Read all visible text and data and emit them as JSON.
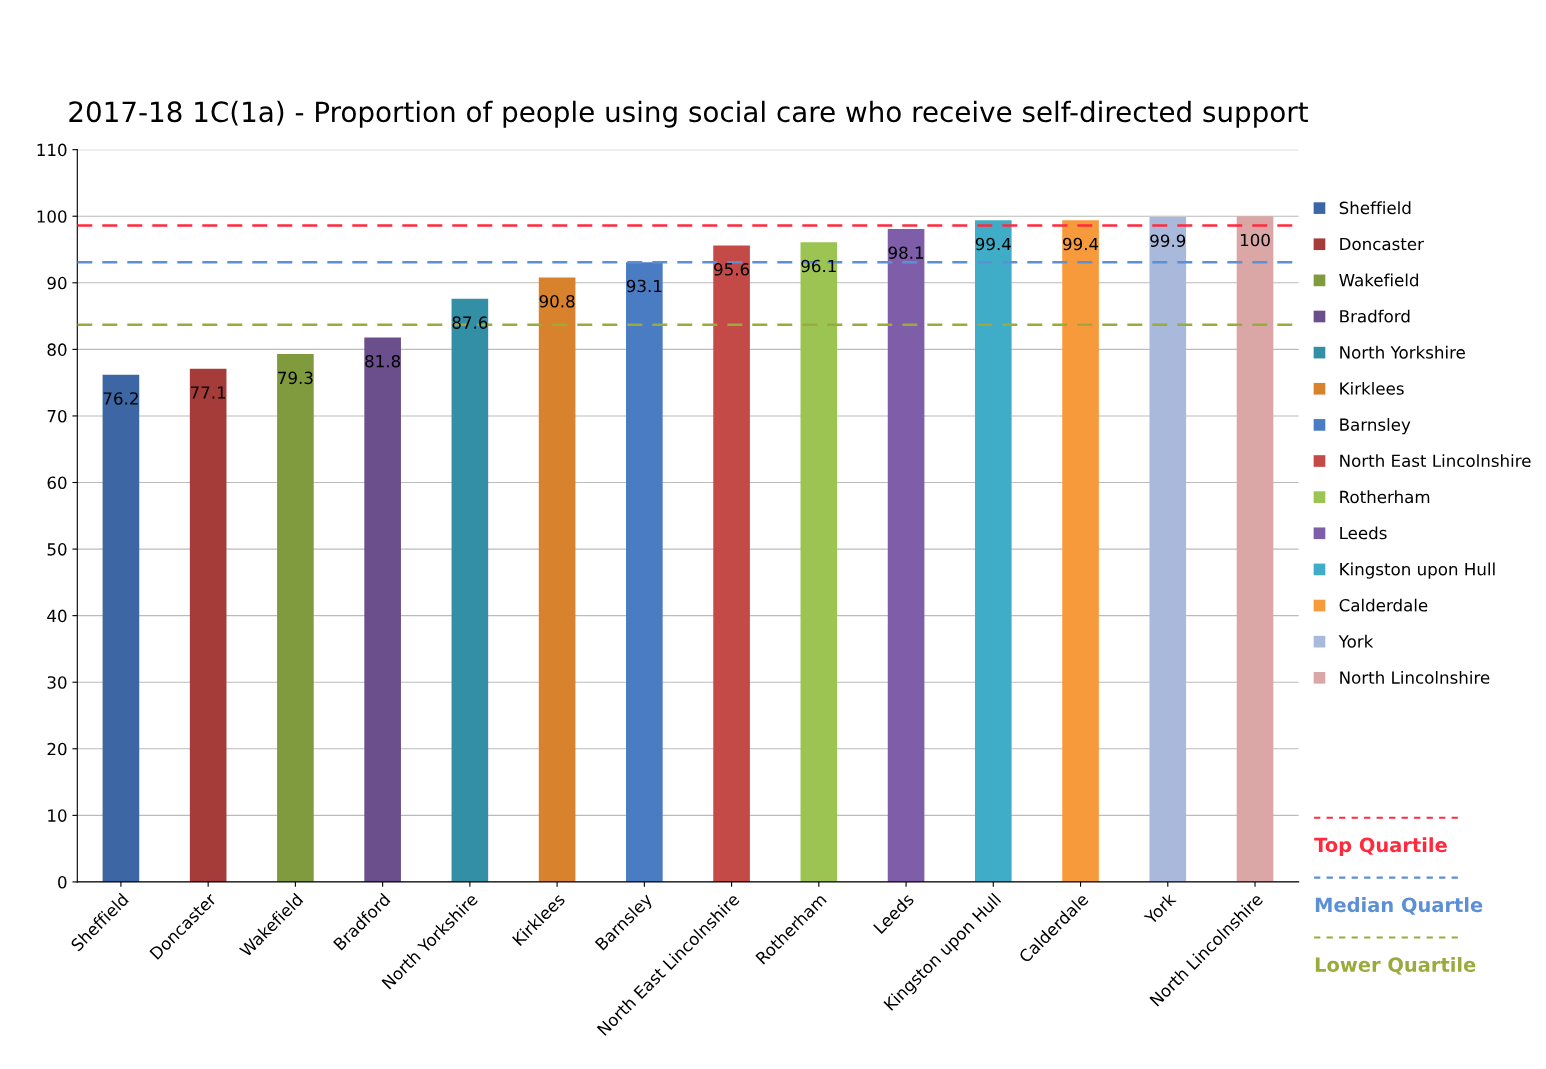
{
  "chart_data": {
    "type": "bar",
    "title": "2017-18 1C(1a) - Proportion of people using social care who receive self-directed support",
    "categories": [
      "Sheffield",
      "Doncaster",
      "Wakefield",
      "Bradford",
      "North Yorkshire",
      "Kirklees",
      "Barnsley",
      "North East Lincolnshire",
      "Rotherham",
      "Leeds",
      "Kingston upon Hull",
      "Calderdale",
      "York",
      "North Lincolnshire"
    ],
    "series": [
      {
        "name": "Sheffield",
        "color": "#3c67a4",
        "values": [
          76.2,
          null,
          null,
          null,
          null,
          null,
          null,
          null,
          null,
          null,
          null,
          null,
          null,
          null
        ]
      },
      {
        "name": "Doncaster",
        "color": "#a53c3a",
        "values": [
          null,
          77.1,
          null,
          null,
          null,
          null,
          null,
          null,
          null,
          null,
          null,
          null,
          null,
          null
        ]
      },
      {
        "name": "Wakefield",
        "color": "#7f9b3e",
        "values": [
          null,
          null,
          79.3,
          null,
          null,
          null,
          null,
          null,
          null,
          null,
          null,
          null,
          null,
          null
        ]
      },
      {
        "name": "Bradford",
        "color": "#6a4f8c",
        "values": [
          null,
          null,
          null,
          81.8,
          null,
          null,
          null,
          null,
          null,
          null,
          null,
          null,
          null,
          null
        ]
      },
      {
        "name": "North Yorkshire",
        "color": "#338fa6",
        "values": [
          null,
          null,
          null,
          null,
          87.6,
          null,
          null,
          null,
          null,
          null,
          null,
          null,
          null,
          null
        ]
      },
      {
        "name": "Kirklees",
        "color": "#d9822e",
        "values": [
          null,
          null,
          null,
          null,
          null,
          90.8,
          null,
          null,
          null,
          null,
          null,
          null,
          null,
          null
        ]
      },
      {
        "name": "Barnsley",
        "color": "#4a7cc4",
        "values": [
          null,
          null,
          null,
          null,
          null,
          null,
          93.1,
          null,
          null,
          null,
          null,
          null,
          null,
          null
        ]
      },
      {
        "name": "North East Lincolnshire",
        "color": "#c44a48",
        "values": [
          null,
          null,
          null,
          null,
          null,
          null,
          null,
          95.6,
          null,
          null,
          null,
          null,
          null,
          null
        ]
      },
      {
        "name": "Rotherham",
        "color": "#9cc452",
        "values": [
          null,
          null,
          null,
          null,
          null,
          null,
          null,
          null,
          96.1,
          null,
          null,
          null,
          null,
          null
        ]
      },
      {
        "name": "Leeds",
        "color": "#7e5ea8",
        "values": [
          null,
          null,
          null,
          null,
          null,
          null,
          null,
          null,
          null,
          98.1,
          null,
          null,
          null,
          null
        ]
      },
      {
        "name": "Kingston upon Hull",
        "color": "#40adc8",
        "values": [
          null,
          null,
          null,
          null,
          null,
          null,
          null,
          null,
          null,
          null,
          99.4,
          null,
          null,
          null
        ]
      },
      {
        "name": "Calderdale",
        "color": "#f79a3c",
        "values": [
          null,
          null,
          null,
          null,
          null,
          null,
          null,
          null,
          null,
          null,
          null,
          99.4,
          null,
          null
        ]
      },
      {
        "name": "York",
        "color": "#a9b9dc",
        "values": [
          null,
          null,
          null,
          null,
          null,
          null,
          null,
          null,
          null,
          null,
          null,
          null,
          99.9,
          null
        ]
      },
      {
        "name": "North Lincolnshire",
        "color": "#dba6a6",
        "values": [
          null,
          null,
          null,
          null,
          null,
          null,
          null,
          null,
          null,
          null,
          null,
          null,
          null,
          100
        ]
      }
    ],
    "data_labels": true,
    "ylim": [
      0,
      110
    ],
    "yticks": [
      0,
      10,
      20,
      30,
      40,
      50,
      60,
      70,
      80,
      90,
      100,
      110
    ],
    "grid": "y",
    "legend": "right",
    "ref_lines": [
      {
        "axis": "y",
        "value": 98.6,
        "label": "Top Quartile",
        "color": "#ff2a3c",
        "line_style": "dashed"
      },
      {
        "axis": "y",
        "value": 93.1,
        "label": "Median Quartle",
        "color": "#5b8fd6",
        "line_style": "dashed"
      },
      {
        "axis": "y",
        "value": 83.7,
        "label": "Lower Quartile",
        "color": "#9aaa3c",
        "line_style": "dashed"
      }
    ]
  }
}
